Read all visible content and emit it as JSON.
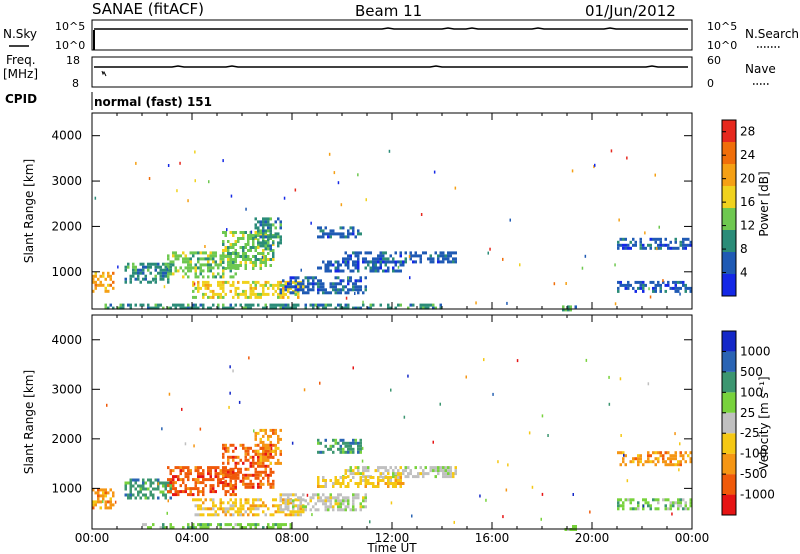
{
  "header": {
    "station": "SANAE (fitACF)",
    "beam": "Beam 11",
    "date": "01/Jun/2012"
  },
  "aux_panels": {
    "nsky_label": "N.Sky",
    "nsky_ticks": [
      "10^5",
      "10^0"
    ],
    "nsearch_label": "N.Search",
    "nsearch_ticks": [
      "10^5",
      "10^0"
    ],
    "freq_label_1": "Freq.",
    "freq_label_2": "[MHz]",
    "freq_ticks": [
      "18",
      "8"
    ],
    "nave_label": "Nave",
    "nave_ticks": [
      "60",
      "0"
    ],
    "cpid_label": "CPID",
    "cpid_value": "normal (fast) 151"
  },
  "chart_data": [
    {
      "type": "heatmap",
      "name": "power",
      "ylabel": "Slant Range [km]",
      "xlabel": "Time UT",
      "xlim_hours": [
        0,
        24
      ],
      "ylim": [
        180,
        4500
      ],
      "x_tick_labels": [
        "00:00",
        "04:00",
        "08:00",
        "12:00",
        "16:00",
        "20:00",
        "00:00"
      ],
      "y_tick_labels": [
        "1000",
        "2000",
        "3000",
        "4000"
      ],
      "y_tick_values": [
        1000,
        2000,
        3000,
        4000
      ],
      "colorbar": {
        "label": "Power [dB]",
        "range": [
          0,
          30
        ],
        "tick_labels": [
          "4",
          "8",
          "12",
          "16",
          "20",
          "24",
          "28"
        ],
        "tick_values": [
          4,
          8,
          12,
          16,
          20,
          24,
          28
        ],
        "colors": [
          "#1428e6",
          "#1f5ab4",
          "#2b8c78",
          "#6ec850",
          "#f0d21e",
          "#f5a014",
          "#f06e0a",
          "#e6281e"
        ]
      },
      "echo_regions": [
        {
          "t0": 0.0,
          "t1": 0.9,
          "r0": 600,
          "r1": 1000,
          "level": 5
        },
        {
          "t0": 1.3,
          "t1": 3.2,
          "r0": 800,
          "r1": 1200,
          "level": 2
        },
        {
          "t0": 3.0,
          "t1": 5.8,
          "r0": 900,
          "r1": 1450,
          "level": 3
        },
        {
          "t0": 5.2,
          "t1": 7.3,
          "r0": 1050,
          "r1": 1900,
          "level": 3
        },
        {
          "t0": 6.5,
          "t1": 7.6,
          "r0": 1500,
          "r1": 2200,
          "level": 2
        },
        {
          "t0": 4.0,
          "t1": 8.5,
          "r0": 450,
          "r1": 800,
          "level": 4
        },
        {
          "t0": 7.5,
          "t1": 11.0,
          "r0": 550,
          "r1": 900,
          "level": 1
        },
        {
          "t0": 9.0,
          "t1": 10.8,
          "r0": 1750,
          "r1": 2000,
          "level": 1
        },
        {
          "t0": 10.0,
          "t1": 14.6,
          "r0": 1250,
          "r1": 1450,
          "level": 1
        },
        {
          "t0": 9.0,
          "t1": 12.5,
          "r0": 1050,
          "r1": 1250,
          "level": 1
        },
        {
          "t0": 18.8,
          "t1": 19.4,
          "r0": 180,
          "r1": 260,
          "level": 2
        },
        {
          "t0": 21.0,
          "t1": 24.0,
          "r0": 1500,
          "r1": 1750,
          "level": 1
        },
        {
          "t0": 21.0,
          "t1": 24.0,
          "r0": 600,
          "r1": 800,
          "level": 1
        },
        {
          "t0": 0.5,
          "t1": 14.0,
          "r0": 180,
          "r1": 300,
          "level": 2
        }
      ]
    },
    {
      "type": "heatmap",
      "name": "velocity",
      "ylabel": "Slant Range [km]",
      "xlabel": "Time UT",
      "xlim_hours": [
        0,
        24
      ],
      "ylim": [
        180,
        4500
      ],
      "x_tick_labels": [
        "00:00",
        "04:00",
        "08:00",
        "12:00",
        "16:00",
        "20:00",
        "00:00"
      ],
      "y_tick_labels": [
        "1000",
        "2000",
        "3000",
        "4000"
      ],
      "y_tick_values": [
        1000,
        2000,
        3000,
        4000
      ],
      "colorbar": {
        "label": "Velocity [m s⁻¹]",
        "tick_labels": [
          "1000",
          "500",
          "100",
          "25",
          "-25",
          "-100",
          "-500",
          "-1000"
        ],
        "colors": [
          "#1428c8",
          "#2a64b4",
          "#3c9670",
          "#78d23c",
          "#c0c0c0",
          "#f5c814",
          "#f59614",
          "#f05a0a",
          "#e61414"
        ]
      },
      "echo_regions": [
        {
          "t0": 0.0,
          "t1": 0.9,
          "r0": 600,
          "r1": 1000,
          "level": 6
        },
        {
          "t0": 1.3,
          "t1": 3.2,
          "r0": 800,
          "r1": 1200,
          "level": 2
        },
        {
          "t0": 3.0,
          "t1": 5.8,
          "r0": 900,
          "r1": 1450,
          "level": 7
        },
        {
          "t0": 5.2,
          "t1": 7.3,
          "r0": 1050,
          "r1": 1900,
          "level": 7
        },
        {
          "t0": 6.5,
          "t1": 7.6,
          "r0": 1500,
          "r1": 2200,
          "level": 6
        },
        {
          "t0": 4.0,
          "t1": 8.5,
          "r0": 450,
          "r1": 800,
          "level": 5
        },
        {
          "t0": 7.5,
          "t1": 11.0,
          "r0": 550,
          "r1": 900,
          "level": 4
        },
        {
          "t0": 9.0,
          "t1": 10.8,
          "r0": 1750,
          "r1": 2000,
          "level": 2
        },
        {
          "t0": 10.0,
          "t1": 14.6,
          "r0": 1250,
          "r1": 1450,
          "level": 4
        },
        {
          "t0": 9.0,
          "t1": 12.5,
          "r0": 1050,
          "r1": 1250,
          "level": 5
        },
        {
          "t0": 18.8,
          "t1": 19.4,
          "r0": 180,
          "r1": 260,
          "level": 3
        },
        {
          "t0": 21.0,
          "t1": 24.0,
          "r0": 1500,
          "r1": 1750,
          "level": 6
        },
        {
          "t0": 21.0,
          "t1": 24.0,
          "r0": 600,
          "r1": 800,
          "level": 3
        },
        {
          "t0": 2.0,
          "t1": 8.0,
          "r0": 180,
          "r1": 300,
          "level": 3
        }
      ]
    }
  ]
}
